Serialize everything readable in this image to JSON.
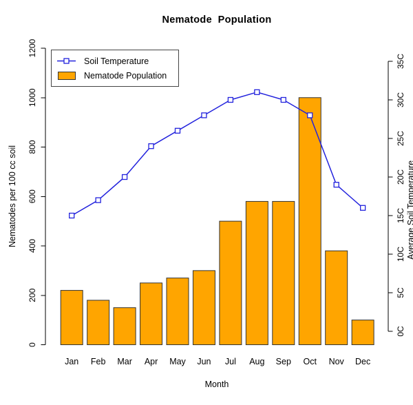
{
  "title": "Nematode  Population",
  "legend": {
    "items": [
      {
        "label": "Soil Temperature"
      },
      {
        "label": "Nematode Population"
      }
    ]
  },
  "chart_data": {
    "type": "bar",
    "title": "Nematode  Population",
    "categories": [
      "Jan",
      "Feb",
      "Mar",
      "Apr",
      "May",
      "Jun",
      "Jul",
      "Aug",
      "Sep",
      "Oct",
      "Nov",
      "Dec"
    ],
    "series": [
      {
        "name": "Nematode Population",
        "type": "bar",
        "axis": "left",
        "color": "#FFA500",
        "border_color": "#333333",
        "values": [
          220,
          180,
          150,
          250,
          270,
          300,
          500,
          580,
          580,
          1000,
          380,
          100
        ]
      },
      {
        "name": "Soil Temperature",
        "type": "line",
        "axis": "right",
        "color": "#2222DD",
        "marker": "open-square",
        "values": [
          15,
          17,
          20,
          24,
          26,
          28,
          30,
          31,
          30,
          28,
          19,
          16
        ]
      }
    ],
    "xlabel": "Month",
    "ylabel_left": "Nematodes per 100 cc soil",
    "ylabel_right": "Average Soil Temperature",
    "left_axis": {
      "min": 0,
      "max": 1200,
      "tick_values": [
        0,
        200,
        400,
        600,
        800,
        1000,
        1200
      ],
      "tick_labels": [
        "0",
        "200",
        "400",
        "600",
        "800",
        "1000",
        "1200"
      ]
    },
    "right_axis": {
      "min": 0,
      "max": 35,
      "tick_values": [
        0,
        5,
        10,
        15,
        20,
        25,
        30,
        35
      ],
      "tick_labels": [
        "0C",
        "5C",
        "10C",
        "15C",
        "20C",
        "25C",
        "30C",
        "35C"
      ]
    },
    "grid": false,
    "legend_position": "top-left"
  }
}
